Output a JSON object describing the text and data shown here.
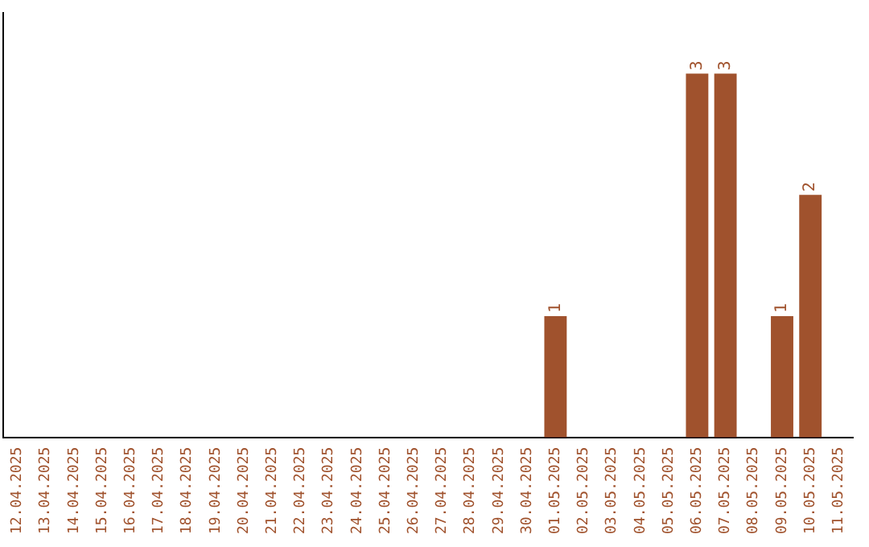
{
  "chart_data": {
    "type": "bar",
    "categories": [
      "12.04.2025",
      "13.04.2025",
      "14.04.2025",
      "15.04.2025",
      "16.04.2025",
      "17.04.2025",
      "18.04.2025",
      "19.04.2025",
      "20.04.2025",
      "21.04.2025",
      "22.04.2025",
      "23.04.2025",
      "24.04.2025",
      "25.04.2025",
      "26.04.2025",
      "27.04.2025",
      "28.04.2025",
      "29.04.2025",
      "30.04.2025",
      "01.05.2025",
      "02.05.2025",
      "03.05.2025",
      "04.05.2025",
      "05.05.2025",
      "06.05.2025",
      "07.05.2025",
      "08.05.2025",
      "09.05.2025",
      "10.05.2025",
      "11.05.2025"
    ],
    "values": [
      null,
      null,
      null,
      null,
      null,
      null,
      null,
      null,
      null,
      null,
      null,
      null,
      null,
      null,
      null,
      null,
      null,
      null,
      null,
      1,
      null,
      null,
      null,
      null,
      3,
      3,
      null,
      1,
      2,
      null
    ],
    "data_labels": true,
    "color": "#a0522d",
    "tick_labels": "x",
    "grid": false,
    "legend": false
  }
}
